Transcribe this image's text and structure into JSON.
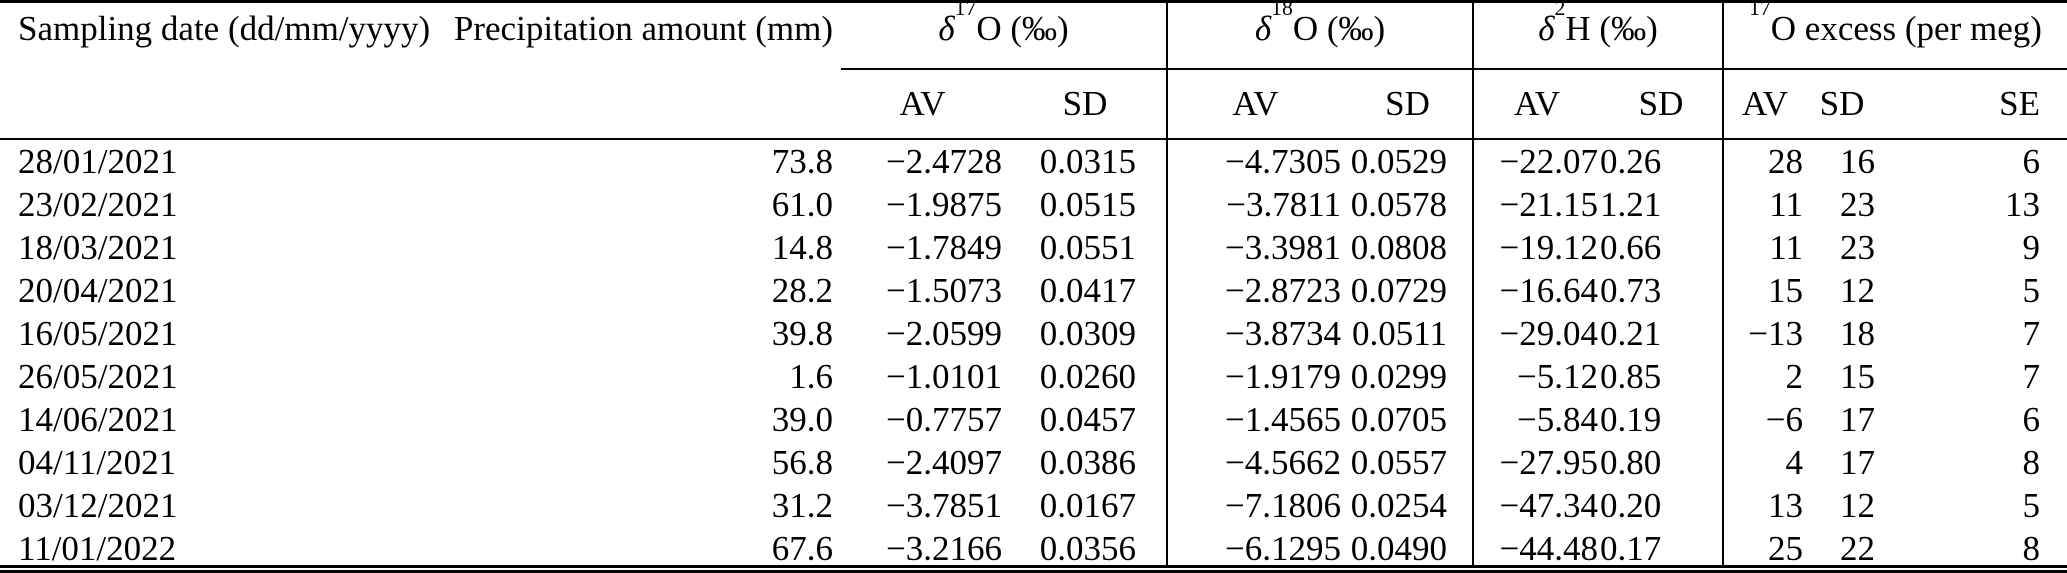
{
  "page": {
    "background": "#ffffff",
    "text_color": "#000000"
  },
  "table": {
    "header": {
      "sampling_date": "Sampling date (dd/mm/yyyy)",
      "precipitation": "Precipitation amount (mm)",
      "groups": [
        {
          "prefix": "δ",
          "sup": "17",
          "suffix": "O (‰)",
          "subcols": [
            "AV",
            "SD"
          ]
        },
        {
          "prefix": "δ",
          "sup": "18",
          "suffix": "O (‰)",
          "subcols": [
            "AV",
            "SD"
          ]
        },
        {
          "prefix": "δ",
          "sup": "2",
          "suffix": "H (‰)",
          "subcols": [
            "AV",
            "SD"
          ]
        },
        {
          "prefix": "",
          "sup": "17",
          "suffix": "O excess (per meg)",
          "subcols": [
            "AV",
            "SD",
            "SE"
          ]
        }
      ]
    },
    "column_keys": [
      "sampling-date",
      "precipitation-amount",
      "d17o-av",
      "d17o-sd",
      "d18o-av",
      "d18o-sd",
      "d2h-av",
      "d2h-sd",
      "o17-excess-av",
      "o17-excess-sd",
      "o17-excess-se"
    ],
    "rows": [
      [
        "28/01/2021",
        "73.8",
        "−2.4728",
        "0.0315",
        "−4.7305",
        "0.0529",
        "−22.07",
        "0.26",
        "28",
        "16",
        "6"
      ],
      [
        "23/02/2021",
        "61.0",
        "−1.9875",
        "0.0515",
        "−3.7811",
        "0.0578",
        "−21.15",
        "1.21",
        "11",
        "23",
        "13"
      ],
      [
        "18/03/2021",
        "14.8",
        "−1.7849",
        "0.0551",
        "−3.3981",
        "0.0808",
        "−19.12",
        "0.66",
        "11",
        "23",
        "9"
      ],
      [
        "20/04/2021",
        "28.2",
        "−1.5073",
        "0.0417",
        "−2.8723",
        "0.0729",
        "−16.64",
        "0.73",
        "15",
        "12",
        "5"
      ],
      [
        "16/05/2021",
        "39.8",
        "−2.0599",
        "0.0309",
        "−3.8734",
        "0.0511",
        "−29.04",
        "0.21",
        "−13",
        "18",
        "7"
      ],
      [
        "26/05/2021",
        "1.6",
        "−1.0101",
        "0.0260",
        "−1.9179",
        "0.0299",
        "−5.12",
        "0.85",
        "2",
        "15",
        "7"
      ],
      [
        "14/06/2021",
        "39.0",
        "−0.7757",
        "0.0457",
        "−1.4565",
        "0.0705",
        "−5.84",
        "0.19",
        "−6",
        "17",
        "6"
      ],
      [
        "04/11/2021",
        "56.8",
        "−2.4097",
        "0.0386",
        "−4.5662",
        "0.0557",
        "−27.95",
        "0.80",
        "4",
        "17",
        "8"
      ],
      [
        "03/12/2021",
        "31.2",
        "−3.7851",
        "0.0167",
        "−7.1806",
        "0.0254",
        "−47.34",
        "0.20",
        "13",
        "12",
        "5"
      ],
      [
        "11/01/2022",
        "67.6",
        "−3.2166",
        "0.0356",
        "−6.1295",
        "0.0490",
        "−44.48",
        "0.17",
        "25",
        "22",
        "8"
      ]
    ]
  }
}
